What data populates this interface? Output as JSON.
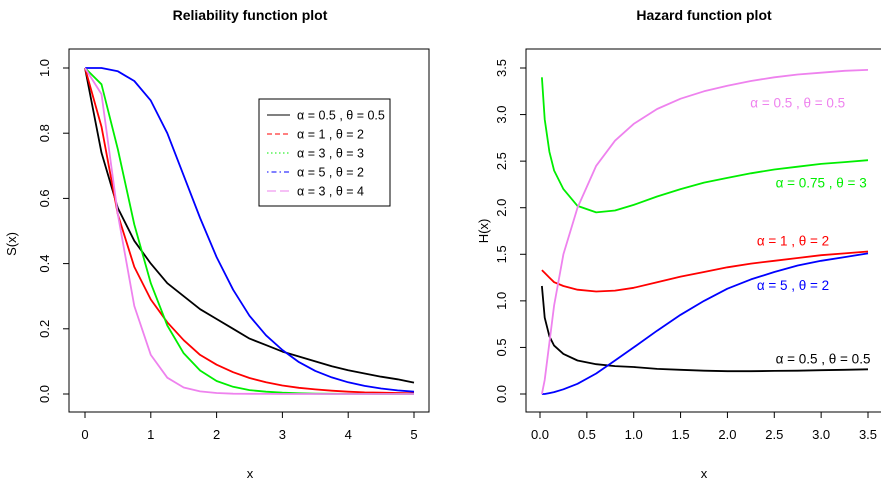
{
  "chart_data": [
    {
      "type": "line",
      "title": "Reliability function plot",
      "xlabel": "x",
      "ylabel": "S(x)",
      "xlim": [
        0,
        5
      ],
      "ylim": [
        0,
        1
      ],
      "xticks": [
        "0",
        "1",
        "2",
        "3",
        "4",
        "5"
      ],
      "yticks": [
        "0.0",
        "0.2",
        "0.4",
        "0.6",
        "0.8",
        "1.0"
      ],
      "grid": false,
      "legend_position": "top-right",
      "x": [
        0,
        0.25,
        0.5,
        0.75,
        1,
        1.25,
        1.5,
        1.75,
        2,
        2.25,
        2.5,
        2.75,
        3,
        3.25,
        3.5,
        3.75,
        4,
        4.25,
        4.5,
        4.75,
        5
      ],
      "series": [
        {
          "name": "α = 0.5 , θ = 0.5",
          "color": "#000000",
          "dash": "solid",
          "values": [
            1.0,
            0.74,
            0.57,
            0.47,
            0.4,
            0.34,
            0.3,
            0.26,
            0.23,
            0.2,
            0.17,
            0.15,
            0.13,
            0.115,
            0.1,
            0.085,
            0.073,
            0.063,
            0.053,
            0.045,
            0.035
          ]
        },
        {
          "name": "α = 1 , θ = 2",
          "color": "#ff0000",
          "dash": "dashed",
          "values": [
            1.0,
            0.82,
            0.55,
            0.39,
            0.29,
            0.22,
            0.165,
            0.12,
            0.09,
            0.067,
            0.049,
            0.036,
            0.026,
            0.019,
            0.014,
            0.01,
            0.007,
            0.005,
            0.004,
            0.003,
            0.002
          ]
        },
        {
          "name": "α = 3 , θ = 3",
          "color": "#00ee00",
          "dash": "dotted",
          "values": [
            1.0,
            0.95,
            0.75,
            0.52,
            0.34,
            0.21,
            0.125,
            0.072,
            0.04,
            0.022,
            0.012,
            0.007,
            0.004,
            0.002,
            0.001,
            0.0005,
            0.0003,
            0.0002,
            0.0001,
            0.0,
            0.0
          ]
        },
        {
          "name": "α = 5 , θ = 2",
          "color": "#0000ff",
          "dash": "dotdash",
          "values": [
            1.0,
            1.0,
            0.99,
            0.96,
            0.9,
            0.8,
            0.67,
            0.54,
            0.42,
            0.32,
            0.24,
            0.18,
            0.135,
            0.098,
            0.071,
            0.051,
            0.036,
            0.025,
            0.017,
            0.011,
            0.007
          ]
        },
        {
          "name": "α = 3 , θ = 4",
          "color": "#ee82ee",
          "dash": "longdash",
          "values": [
            1.0,
            0.92,
            0.55,
            0.27,
            0.12,
            0.05,
            0.02,
            0.008,
            0.003,
            0.001,
            0.0005,
            0.0002,
            0.0001,
            0.0,
            0.0,
            0.0,
            0.0,
            0.0,
            0.0,
            0.0,
            0.0
          ]
        }
      ]
    },
    {
      "type": "line",
      "title": "Hazard function plot",
      "xlabel": "x",
      "ylabel": "H(x)",
      "xlim": [
        0,
        3.5
      ],
      "ylim": [
        0,
        3.5
      ],
      "xticks": [
        "0.0",
        "0.5",
        "1.0",
        "1.5",
        "2.0",
        "2.5",
        "3.0",
        "3.5"
      ],
      "yticks": [
        "0.0",
        "0.5",
        "1.0",
        "1.5",
        "2.0",
        "2.5",
        "3.0",
        "3.5"
      ],
      "grid": false,
      "x": [
        0.02,
        0.05,
        0.1,
        0.15,
        0.25,
        0.4,
        0.6,
        0.8,
        1.0,
        1.25,
        1.5,
        1.75,
        2.0,
        2.25,
        2.5,
        2.75,
        3.0,
        3.25,
        3.5
      ],
      "series": [
        {
          "name": "α = 0.5 , θ = 0.5",
          "color": "#000000",
          "values": [
            1.16,
            0.82,
            0.62,
            0.52,
            0.43,
            0.36,
            0.32,
            0.3,
            0.29,
            0.27,
            0.26,
            0.25,
            0.245,
            0.245,
            0.248,
            0.25,
            0.255,
            0.26,
            0.265
          ]
        },
        {
          "name": "α = 1 , θ = 2",
          "color": "#ff0000",
          "values": [
            1.33,
            1.3,
            1.25,
            1.2,
            1.16,
            1.12,
            1.1,
            1.11,
            1.14,
            1.2,
            1.26,
            1.31,
            1.36,
            1.4,
            1.43,
            1.46,
            1.49,
            1.51,
            1.53
          ]
        },
        {
          "name": "α = 0.75 , θ = 3",
          "color": "#00ee00",
          "values": [
            3.4,
            2.95,
            2.6,
            2.4,
            2.2,
            2.02,
            1.95,
            1.97,
            2.03,
            2.12,
            2.2,
            2.27,
            2.32,
            2.37,
            2.41,
            2.44,
            2.47,
            2.49,
            2.51
          ]
        },
        {
          "name": "α = 5 , θ = 2",
          "color": "#0000ff",
          "values": [
            0.0,
            0.0,
            0.01,
            0.02,
            0.05,
            0.11,
            0.22,
            0.36,
            0.5,
            0.68,
            0.85,
            1.0,
            1.13,
            1.23,
            1.31,
            1.38,
            1.43,
            1.47,
            1.51
          ]
        },
        {
          "name": "α = 0.5 , θ = 0.5",
          "color": "#ee82ee",
          "values": [
            0.0,
            0.15,
            0.55,
            0.95,
            1.5,
            2.0,
            2.45,
            2.72,
            2.9,
            3.06,
            3.17,
            3.25,
            3.31,
            3.36,
            3.4,
            3.43,
            3.45,
            3.47,
            3.48
          ]
        }
      ],
      "annotations": [
        {
          "text": "α = 0.5 , θ = 0.5",
          "color": "#ee82ee",
          "x": 2.75,
          "y": 3.13
        },
        {
          "text": "α = 0.75 , θ = 3",
          "color": "#00ee00",
          "x": 3.0,
          "y": 2.27
        },
        {
          "text": "α = 1 , θ = 2",
          "color": "#ff0000",
          "x": 2.7,
          "y": 1.65
        },
        {
          "text": "α = 5 , θ = 2",
          "color": "#0000ff",
          "x": 2.7,
          "y": 1.17
        },
        {
          "text": "α = 0.5 , θ = 0.5",
          "color": "#000000",
          "x": 3.02,
          "y": 0.38
        }
      ]
    }
  ]
}
